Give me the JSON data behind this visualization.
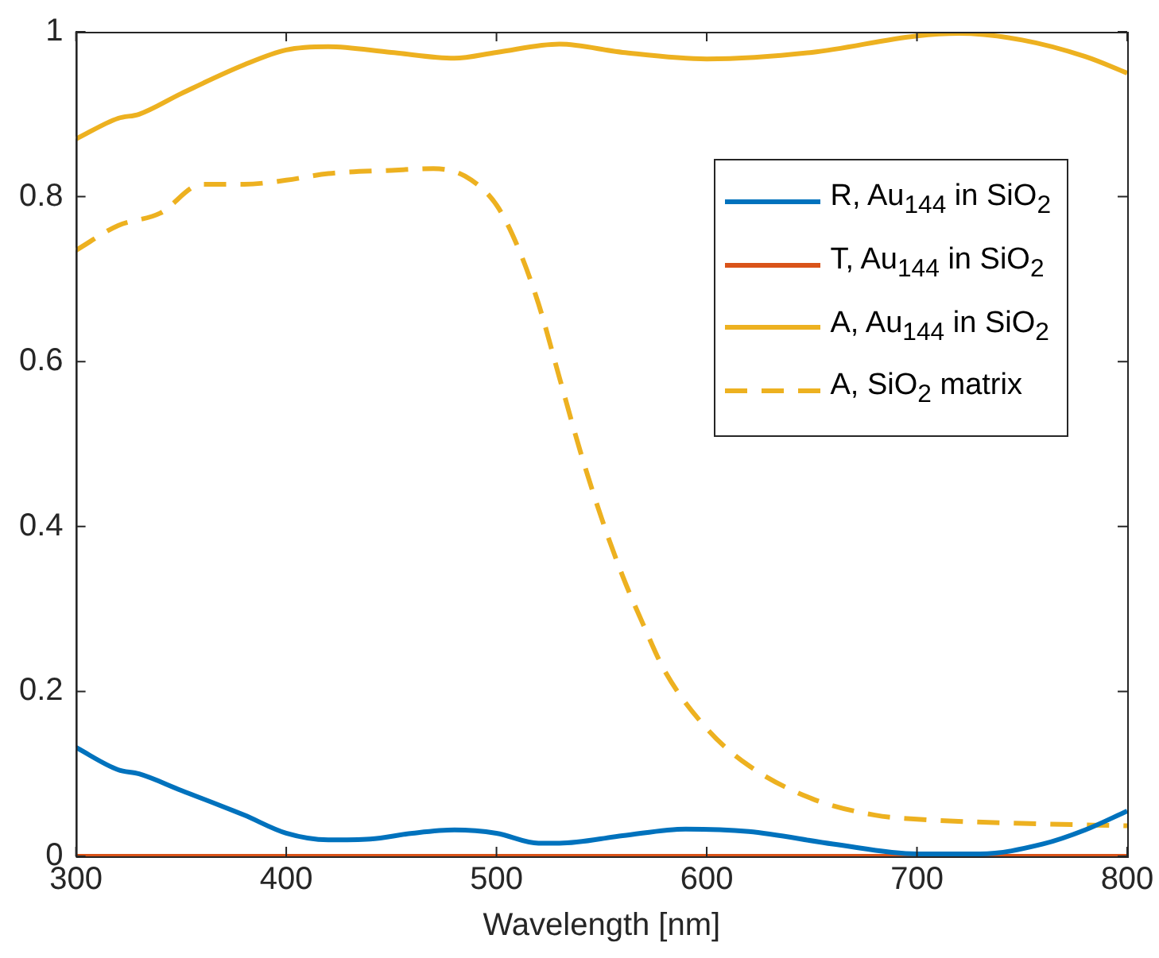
{
  "chart_data": {
    "type": "line",
    "xlabel": "Wavelength [nm]",
    "xlim": [
      300,
      800
    ],
    "xticks": [
      300,
      400,
      500,
      600,
      700,
      800
    ],
    "ylim": [
      0,
      1
    ],
    "yticks": [
      0,
      0.2,
      0.4,
      0.6,
      0.8,
      1
    ],
    "grid": false,
    "legend": "top right",
    "marker": "none",
    "series": [
      {
        "name": "R, Au$_{144}$ in SiO$_{2}$",
        "color": "#0072bd",
        "x": [
          300,
          320,
          330,
          350,
          380,
          400,
          420,
          440,
          460,
          480,
          500,
          520,
          530,
          560,
          590,
          620,
          660,
          700,
          730,
          760,
          780,
          800
        ],
        "values": [
          0.132,
          0.105,
          0.1,
          0.08,
          0.05,
          0.028,
          0.02,
          0.021,
          0.028,
          0.032,
          0.028,
          0.016,
          0.016,
          0.025,
          0.033,
          0.03,
          0.015,
          0.003,
          0.003,
          0.015,
          0.032,
          0.055
        ]
      },
      {
        "name": "T, Au$_{144}$ in SiO$_{2}$",
        "color": "#d95319",
        "x": [
          300,
          800
        ],
        "values": [
          0,
          0
        ]
      },
      {
        "name": "A, Au$_{144}$ in SiO$_{2}$",
        "color": "#edb120",
        "x": [
          300,
          320,
          330,
          350,
          380,
          400,
          420,
          450,
          480,
          500,
          530,
          560,
          600,
          650,
          700,
          720,
          750,
          780,
          800
        ],
        "values": [
          0.87,
          0.895,
          0.9,
          0.925,
          0.96,
          0.978,
          0.982,
          0.975,
          0.968,
          0.975,
          0.985,
          0.975,
          0.967,
          0.975,
          0.995,
          0.998,
          0.99,
          0.97,
          0.95
        ]
      },
      {
        "name": "A, SiO$_{2}$ matrix",
        "color": "#edb120",
        "line_style": "dashed",
        "x": [
          300,
          320,
          340,
          360,
          380,
          400,
          420,
          450,
          470,
          485,
          500,
          510,
          520,
          530,
          540,
          550,
          560,
          570,
          580,
          600,
          620,
          650,
          680,
          700,
          750,
          800
        ],
        "values": [
          0.735,
          0.765,
          0.78,
          0.815,
          0.815,
          0.82,
          0.828,
          0.832,
          0.834,
          0.825,
          0.79,
          0.74,
          0.67,
          0.58,
          0.49,
          0.41,
          0.34,
          0.28,
          0.225,
          0.155,
          0.11,
          0.07,
          0.05,
          0.045,
          0.04,
          0.037
        ]
      }
    ]
  }
}
